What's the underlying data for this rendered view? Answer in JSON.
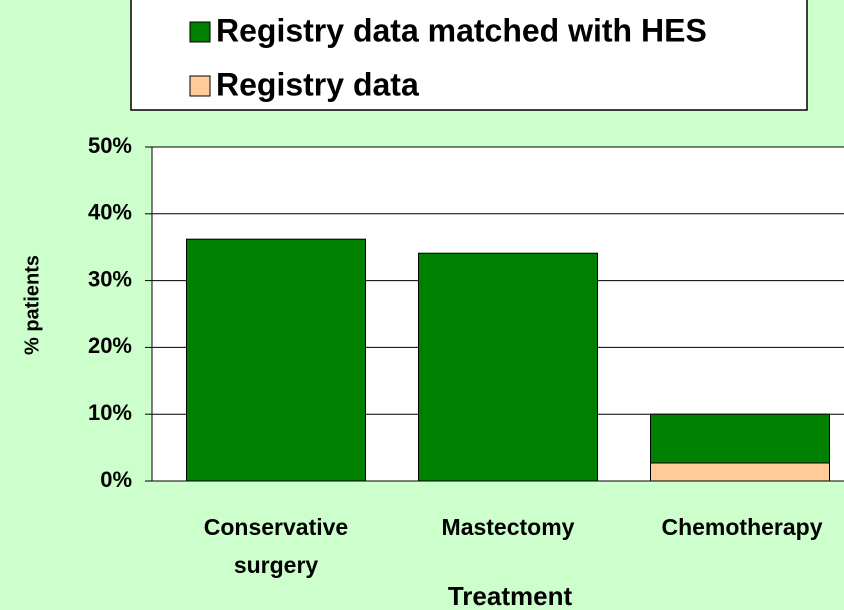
{
  "chart_data": {
    "type": "stacked-bar",
    "categories": [
      "Conservative surgery",
      "Mastectomy",
      "Chemotherapy"
    ],
    "series": [
      {
        "name": "Registry data matched with HES",
        "color": "#008000",
        "values": [
          36.2,
          34.1,
          7.3
        ]
      },
      {
        "name": "Registry data",
        "color": "#ffcc99",
        "values": [
          0,
          0,
          2.7
        ]
      }
    ],
    "ylim": [
      0,
      50
    ],
    "yticks": [
      {
        "value": 0,
        "label": "0%"
      },
      {
        "value": 10,
        "label": "10%"
      },
      {
        "value": 20,
        "label": "20%"
      },
      {
        "value": 30,
        "label": "30%"
      },
      {
        "value": 40,
        "label": "40%"
      },
      {
        "value": 50,
        "label": "50%"
      }
    ],
    "ylabel": "% patients",
    "xlabel": "Treatment",
    "grid": true
  }
}
